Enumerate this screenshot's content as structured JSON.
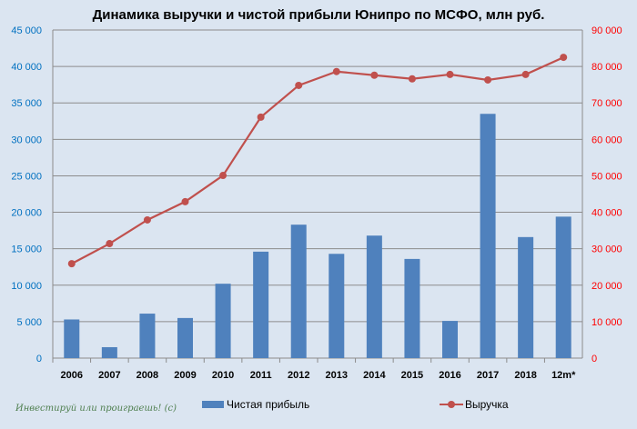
{
  "chart_data": {
    "type": "bar+line",
    "title": "Динамика выручки и чистой прибыли Юнипро по МСФО, млн руб.",
    "categories": [
      "2006",
      "2007",
      "2008",
      "2009",
      "2010",
      "2011",
      "2012",
      "2013",
      "2014",
      "2015",
      "2016",
      "2017",
      "2018",
      "12m*"
    ],
    "series": [
      {
        "name": "Чистая прибыль",
        "type": "bar",
        "axis": "left",
        "color": "#4f81bd",
        "values": [
          5300,
          1500,
          6100,
          5500,
          10200,
          14600,
          18300,
          14300,
          16800,
          13600,
          5100,
          33500,
          16600,
          19400
        ]
      },
      {
        "name": "Выручка",
        "type": "line",
        "axis": "right",
        "color": "#c0504d",
        "values": [
          25900,
          31400,
          37900,
          42900,
          50100,
          66100,
          74800,
          78600,
          77600,
          76600,
          77800,
          76300,
          77800,
          82500
        ]
      }
    ],
    "y_left": {
      "min": 0,
      "max": 45000,
      "ticks": [
        "0",
        "5 000",
        "10 000",
        "15 000",
        "20 000",
        "25 000",
        "30 000",
        "35 000",
        "40 000",
        "45 000"
      ],
      "color": "#0070c0"
    },
    "y_right": {
      "min": 0,
      "max": 90000,
      "ticks": [
        "0",
        "10 000",
        "20 000",
        "30 000",
        "40 000",
        "50 000",
        "60 000",
        "70 000",
        "80 000",
        "90 000"
      ],
      "color": "#ff0000"
    },
    "grid": true,
    "legend": "bottom"
  },
  "watermark": "Инвестируй или проиграешь! (с)"
}
